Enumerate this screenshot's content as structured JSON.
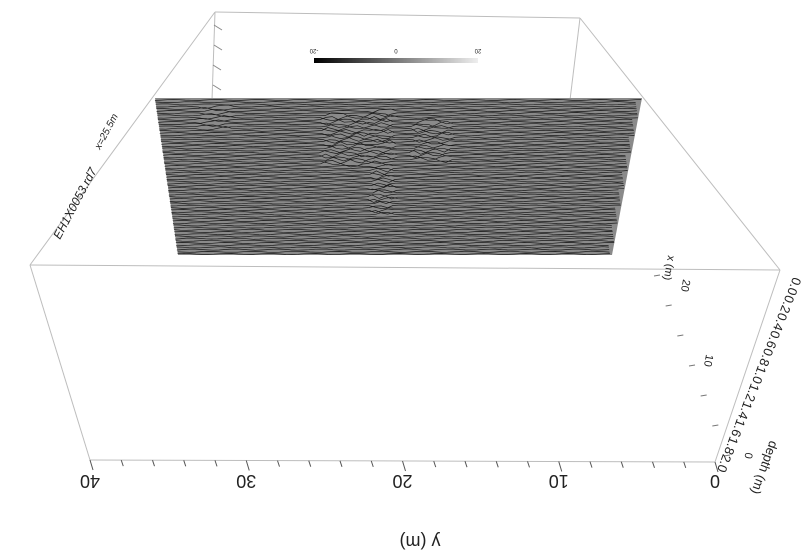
{
  "chart_data": {
    "type": "other",
    "description_type": "3d-gpr-radargram-slice",
    "section_label": "EH1X0053.rd7",
    "section_position": "x=25.5m",
    "y_axis": {
      "label": "y (m)",
      "ticks": [
        "0",
        "10",
        "20",
        "30",
        "40"
      ],
      "range": [
        0,
        40
      ]
    },
    "x_axis": {
      "label": "x (m)",
      "ticks": [
        "0",
        "10",
        "20"
      ]
    },
    "depth_axis": {
      "label": "depth (m)",
      "ticks": [
        "0.0",
        "0.2",
        "0.4",
        "0.6",
        "0.8",
        "1.0",
        "1.2",
        "1.4",
        "1.6",
        "1.8",
        "2.0"
      ]
    },
    "colorbar_ticks": [
      "-20",
      "0",
      "20"
    ],
    "colors": {
      "grid": "#bdbdbd",
      "axis": "#555555",
      "radargram_fill": "#8a8a8a",
      "radargram_line": "#1a1a1a"
    }
  }
}
